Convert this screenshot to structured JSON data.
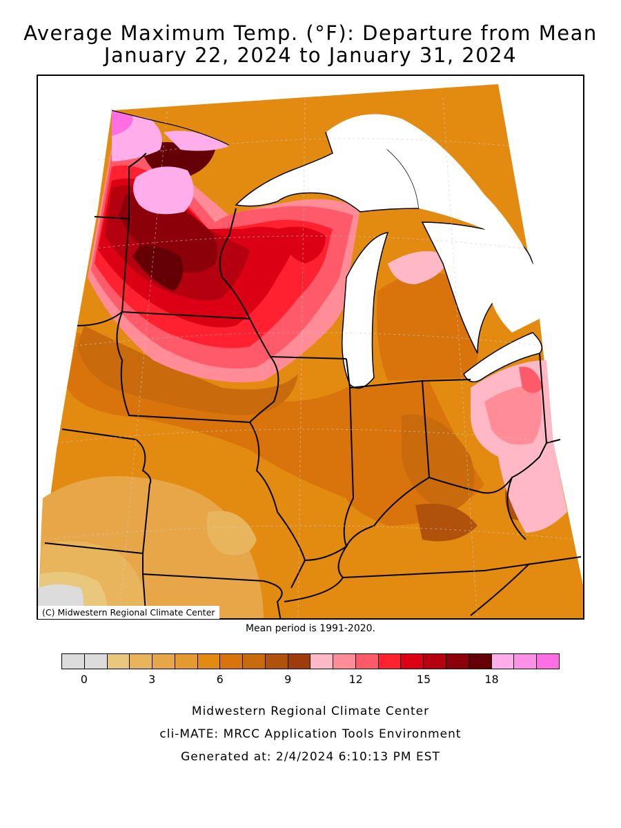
{
  "title": {
    "line1": "Average Maximum Temp. (°F): Departure from Mean",
    "line2": "January 22, 2024 to January 31, 2024"
  },
  "map": {
    "copyright": "(C) Midwestern Regional Climate Center",
    "mean_period": "Mean period is 1991-2020."
  },
  "legend": {
    "colors": [
      "#dcdcdc",
      "#dcdcdc",
      "#e9c77c",
      "#e8b55d",
      "#e7a648",
      "#e59a2f",
      "#e38a10",
      "#d9740c",
      "#c96a0c",
      "#b0520c",
      "#9e3c0b",
      "#ffb8c6",
      "#ff8c96",
      "#ff5a6a",
      "#ff2030",
      "#dc0014",
      "#b4000f",
      "#8c000a",
      "#640005",
      "#ffaeeb",
      "#ff90e8",
      "#ff6ee2"
    ],
    "ticks": [
      {
        "label": "0",
        "index": 1
      },
      {
        "label": "3",
        "index": 4
      },
      {
        "label": "6",
        "index": 7
      },
      {
        "label": "9",
        "index": 10
      },
      {
        "label": "12",
        "index": 13
      },
      {
        "label": "15",
        "index": 16
      },
      {
        "label": "18",
        "index": 19
      }
    ]
  },
  "footer": {
    "line1": "Midwestern Regional Climate Center",
    "line2": "cli-MATE: MRCC Application Tools Environment",
    "line3": "Generated at: 2/4/2024 6:10:13 PM EST"
  }
}
